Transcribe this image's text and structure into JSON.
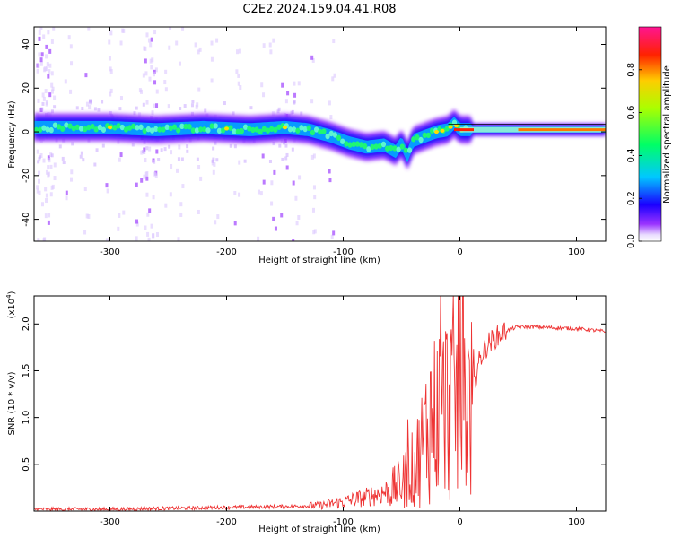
{
  "title": "C2E2.2024.159.04.41.R08",
  "chart_data": [
    {
      "type": "heatmap",
      "xlabel": "Height of straight line (km)",
      "ylabel": "Frequency (Hz)",
      "xlim": [
        -365,
        125
      ],
      "ylim": [
        -50,
        48
      ],
      "xticks": [
        -300,
        -200,
        -100,
        0,
        100
      ],
      "yticks": [
        -40,
        -20,
        0,
        20,
        40
      ],
      "ridge": {
        "x": [
          -365,
          -340,
          -300,
          -260,
          -220,
          -180,
          -150,
          -130,
          -110,
          -95,
          -80,
          -65,
          -55,
          -50,
          -45,
          -40,
          -30,
          -20,
          -10,
          -5,
          0,
          10,
          30,
          60,
          125
        ],
        "y": [
          2,
          2,
          2,
          1,
          2,
          1,
          2,
          1,
          -2,
          -5,
          -7,
          -6,
          -9,
          -5,
          -11,
          -4,
          -2,
          0,
          1,
          4,
          1,
          1,
          1,
          1,
          1
        ]
      },
      "colorbar": {
        "label": "Normalized spectral amplitude",
        "range": [
          0,
          1
        ],
        "ticks": [
          0.0,
          0.2,
          0.4,
          0.6,
          0.8
        ]
      }
    },
    {
      "type": "line",
      "xlabel": "Height of straight line (km)",
      "ylabel": "SNR (10 * v/v)",
      "y_multiplier": "(x10",
      "y_multiplier_exp": "4",
      "y_multiplier_close": ")",
      "xlim": [
        -365,
        125
      ],
      "ylim": [
        0,
        2.3
      ],
      "xticks": [
        -300,
        -200,
        -100,
        0,
        100
      ],
      "yticks": [
        0.5,
        1.0,
        1.5,
        2.0
      ],
      "color": "#ee3333",
      "envelope": {
        "x": [
          -365,
          -300,
          -250,
          -200,
          -150,
          -120,
          -100,
          -80,
          -60,
          -50,
          -40,
          -35,
          -30,
          -25,
          -20,
          -15,
          -10,
          -5,
          0,
          5,
          10,
          15,
          20,
          25,
          30,
          40,
          50,
          60,
          80,
          100,
          125
        ],
        "y": [
          0.02,
          0.02,
          0.03,
          0.04,
          0.05,
          0.06,
          0.1,
          0.15,
          0.22,
          0.3,
          0.45,
          0.6,
          0.8,
          1.0,
          1.05,
          1.1,
          1.15,
          1.2,
          1.1,
          1.2,
          1.1,
          1.55,
          1.7,
          1.8,
          1.85,
          1.93,
          1.97,
          1.97,
          1.96,
          1.95,
          1.92
        ]
      }
    }
  ]
}
